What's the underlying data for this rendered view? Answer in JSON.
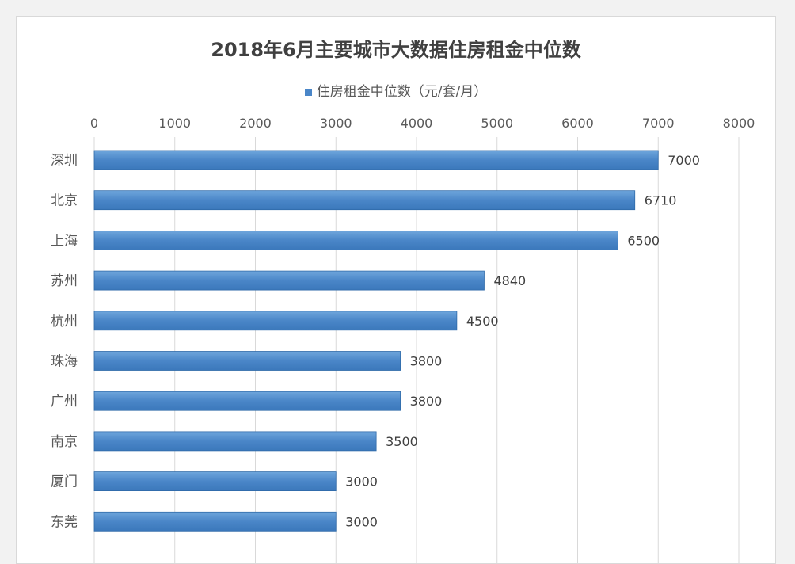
{
  "chart_data": {
    "type": "bar",
    "orientation": "horizontal",
    "title": "2018年6月主要城市大数据住房租金中位数",
    "categories": [
      "深圳",
      "北京",
      "上海",
      "苏州",
      "杭州",
      "珠海",
      "广州",
      "南京",
      "厦门",
      "东莞"
    ],
    "series": [
      {
        "name": "住房租金中位数（元/套/月）",
        "values": [
          7000,
          6710,
          6500,
          4840,
          4500,
          3800,
          3800,
          3500,
          3000,
          3000
        ]
      }
    ],
    "xlim": [
      0,
      8000
    ],
    "xticks": [
      "0",
      "1000",
      "2000",
      "3000",
      "4000",
      "5000",
      "6000",
      "7000",
      "8000"
    ],
    "grid": true,
    "legend_position": "top",
    "data_labels": true,
    "colors": {
      "bar": "#4a86c8",
      "bar_edge": "#2f6aa8"
    }
  }
}
